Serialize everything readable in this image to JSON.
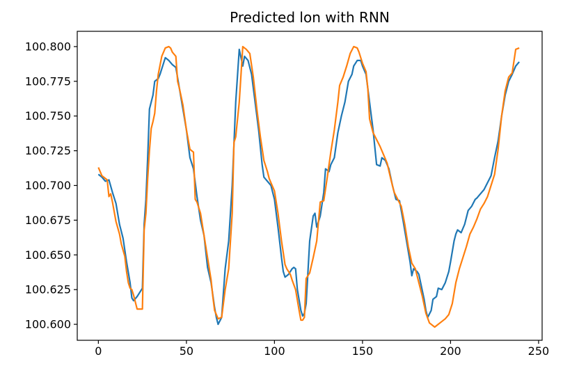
{
  "chart_data": {
    "type": "line",
    "title": "Predicted lon with RNN",
    "xlabel": "",
    "ylabel": "",
    "xlim": [
      -12,
      252
    ],
    "ylim": [
      100.5885,
      100.811
    ],
    "xticks": [
      0,
      50,
      100,
      150,
      200,
      250
    ],
    "yticks": [
      100.6,
      100.625,
      100.65,
      100.675,
      100.7,
      100.725,
      100.75,
      100.775,
      100.8
    ],
    "ytick_labels": [
      "100.600",
      "100.625",
      "100.650",
      "100.675",
      "100.700",
      "100.725",
      "100.750",
      "100.775",
      "100.800"
    ],
    "grid": false,
    "legend": null,
    "series": [
      {
        "color": "#1f77b4",
        "points": [
          [
            0,
            100.708
          ],
          [
            2,
            100.706
          ],
          [
            4,
            100.703
          ],
          [
            6,
            100.704
          ],
          [
            8,
            100.695
          ],
          [
            10,
            100.687
          ],
          [
            12,
            100.672
          ],
          [
            14,
            100.662
          ],
          [
            16,
            100.645
          ],
          [
            18,
            100.63
          ],
          [
            19,
            100.619
          ],
          [
            20,
            100.617
          ],
          [
            22,
            100.62
          ],
          [
            24,
            100.624
          ],
          [
            25,
            100.626
          ],
          [
            26,
            100.672
          ],
          [
            27,
            100.69
          ],
          [
            28,
            100.72
          ],
          [
            29,
            100.755
          ],
          [
            30,
            100.76
          ],
          [
            31,
            100.765
          ],
          [
            32,
            100.775
          ],
          [
            34,
            100.777
          ],
          [
            35,
            100.78
          ],
          [
            37,
            100.788
          ],
          [
            38,
            100.792
          ],
          [
            40,
            100.79
          ],
          [
            42,
            100.787
          ],
          [
            44,
            100.785
          ],
          [
            46,
            100.77
          ],
          [
            48,
            100.755
          ],
          [
            50,
            100.74
          ],
          [
            52,
            100.72
          ],
          [
            54,
            100.712
          ],
          [
            56,
            100.692
          ],
          [
            58,
            100.675
          ],
          [
            60,
            100.664
          ],
          [
            62,
            100.641
          ],
          [
            64,
            100.63
          ],
          [
            66,
            100.612
          ],
          [
            67,
            100.605
          ],
          [
            68,
            100.6
          ],
          [
            70,
            100.605
          ],
          [
            72,
            100.64
          ],
          [
            74,
            100.66
          ],
          [
            76,
            100.7
          ],
          [
            78,
            100.76
          ],
          [
            80,
            100.798
          ],
          [
            81,
            100.792
          ],
          [
            82,
            100.786
          ],
          [
            83,
            100.793
          ],
          [
            85,
            100.79
          ],
          [
            87,
            100.78
          ],
          [
            89,
            100.76
          ],
          [
            91,
            100.74
          ],
          [
            93,
            100.715
          ],
          [
            94,
            100.706
          ],
          [
            96,
            100.703
          ],
          [
            98,
            100.7
          ],
          [
            100,
            100.69
          ],
          [
            102,
            100.67
          ],
          [
            104,
            100.648
          ],
          [
            105,
            100.638
          ],
          [
            106,
            100.634
          ],
          [
            108,
            100.636
          ],
          [
            110,
            100.64
          ],
          [
            111,
            100.641
          ],
          [
            112,
            100.64
          ],
          [
            113,
            100.625
          ],
          [
            115,
            100.61
          ],
          [
            116,
            100.606
          ],
          [
            117,
            100.608
          ],
          [
            118,
            100.615
          ],
          [
            120,
            100.66
          ],
          [
            122,
            100.678
          ],
          [
            123,
            100.68
          ],
          [
            124,
            100.67
          ],
          [
            126,
            100.678
          ],
          [
            128,
            100.695
          ],
          [
            129,
            100.712
          ],
          [
            131,
            100.71
          ],
          [
            132,
            100.715
          ],
          [
            134,
            100.72
          ],
          [
            136,
            100.738
          ],
          [
            138,
            100.75
          ],
          [
            140,
            100.76
          ],
          [
            142,
            100.775
          ],
          [
            144,
            100.78
          ],
          [
            145,
            100.786
          ],
          [
            147,
            100.79
          ],
          [
            149,
            100.79
          ],
          [
            150,
            100.786
          ],
          [
            152,
            100.78
          ],
          [
            154,
            100.76
          ],
          [
            156,
            100.74
          ],
          [
            158,
            100.715
          ],
          [
            160,
            100.714
          ],
          [
            161,
            100.72
          ],
          [
            163,
            100.718
          ],
          [
            165,
            100.712
          ],
          [
            167,
            100.7
          ],
          [
            169,
            100.69
          ],
          [
            171,
            100.689
          ],
          [
            173,
            100.675
          ],
          [
            175,
            100.66
          ],
          [
            177,
            100.645
          ],
          [
            178,
            100.635
          ],
          [
            179,
            100.64
          ],
          [
            181,
            100.638
          ],
          [
            182,
            100.636
          ],
          [
            183,
            100.63
          ],
          [
            185,
            100.618
          ],
          [
            186,
            100.61
          ],
          [
            187,
            100.605
          ],
          [
            189,
            100.61
          ],
          [
            190,
            100.618
          ],
          [
            192,
            100.62
          ],
          [
            193,
            100.626
          ],
          [
            195,
            100.625
          ],
          [
            197,
            100.63
          ],
          [
            199,
            100.638
          ],
          [
            200,
            100.645
          ],
          [
            202,
            100.66
          ],
          [
            203,
            100.665
          ],
          [
            204,
            100.668
          ],
          [
            206,
            100.666
          ],
          [
            208,
            100.672
          ],
          [
            210,
            100.682
          ],
          [
            212,
            100.685
          ],
          [
            214,
            100.69
          ],
          [
            215,
            100.691
          ],
          [
            217,
            100.694
          ],
          [
            219,
            100.697
          ],
          [
            221,
            100.702
          ],
          [
            223,
            100.707
          ],
          [
            225,
            100.72
          ],
          [
            227,
            100.732
          ],
          [
            229,
            100.75
          ],
          [
            231,
            100.765
          ],
          [
            233,
            100.775
          ],
          [
            235,
            100.78
          ],
          [
            237,
            100.786
          ],
          [
            239,
            100.789
          ]
        ]
      },
      {
        "color": "#ff7f0e",
        "points": [
          [
            0,
            100.713
          ],
          [
            1,
            100.71
          ],
          [
            2,
            100.707
          ],
          [
            4,
            100.705
          ],
          [
            5,
            100.704
          ],
          [
            6,
            100.692
          ],
          [
            7,
            100.694
          ],
          [
            8,
            100.688
          ],
          [
            10,
            100.674
          ],
          [
            12,
            100.665
          ],
          [
            13,
            100.658
          ],
          [
            15,
            100.649
          ],
          [
            16,
            100.638
          ],
          [
            17,
            100.63
          ],
          [
            18,
            100.626
          ],
          [
            19,
            100.625
          ],
          [
            20,
            100.621
          ],
          [
            21,
            100.616
          ],
          [
            22,
            100.611
          ],
          [
            24,
            100.611
          ],
          [
            25,
            100.611
          ],
          [
            26,
            100.668
          ],
          [
            27,
            100.68
          ],
          [
            28,
            100.705
          ],
          [
            29,
            100.725
          ],
          [
            30,
            100.741
          ],
          [
            31,
            100.746
          ],
          [
            32,
            100.752
          ],
          [
            33,
            100.768
          ],
          [
            34,
            100.78
          ],
          [
            36,
            100.793
          ],
          [
            38,
            100.799
          ],
          [
            40,
            100.8
          ],
          [
            41,
            100.799
          ],
          [
            42,
            100.796
          ],
          [
            44,
            100.793
          ],
          [
            45,
            100.775
          ],
          [
            46,
            100.77
          ],
          [
            48,
            100.758
          ],
          [
            50,
            100.74
          ],
          [
            52,
            100.726
          ],
          [
            54,
            100.724
          ],
          [
            55,
            100.69
          ],
          [
            56,
            100.688
          ],
          [
            58,
            100.68
          ],
          [
            60,
            100.664
          ],
          [
            62,
            100.648
          ],
          [
            64,
            100.632
          ],
          [
            65,
            100.62
          ],
          [
            66,
            100.61
          ],
          [
            68,
            100.604
          ],
          [
            70,
            100.605
          ],
          [
            72,
            100.625
          ],
          [
            74,
            100.64
          ],
          [
            75,
            100.66
          ],
          [
            76,
            100.68
          ],
          [
            77,
            100.731
          ],
          [
            78,
            100.735
          ],
          [
            80,
            100.76
          ],
          [
            82,
            100.8
          ],
          [
            84,
            100.798
          ],
          [
            86,
            100.795
          ],
          [
            88,
            100.778
          ],
          [
            90,
            100.755
          ],
          [
            92,
            100.735
          ],
          [
            94,
            100.718
          ],
          [
            96,
            100.71
          ],
          [
            97,
            100.705
          ],
          [
            98,
            100.702
          ],
          [
            100,
            100.696
          ],
          [
            102,
            100.68
          ],
          [
            104,
            100.66
          ],
          [
            106,
            100.643
          ],
          [
            107,
            100.64
          ],
          [
            108,
            100.638
          ],
          [
            109,
            100.636
          ],
          [
            110,
            100.632
          ],
          [
            112,
            100.625
          ],
          [
            114,
            100.61
          ],
          [
            115,
            100.603
          ],
          [
            116,
            100.603
          ],
          [
            117,
            100.605
          ],
          [
            118,
            100.633
          ],
          [
            120,
            100.637
          ],
          [
            122,
            100.648
          ],
          [
            124,
            100.66
          ],
          [
            126,
            100.688
          ],
          [
            128,
            100.689
          ],
          [
            130,
            100.706
          ],
          [
            132,
            100.724
          ],
          [
            134,
            100.74
          ],
          [
            136,
            100.76
          ],
          [
            137,
            100.772
          ],
          [
            139,
            100.778
          ],
          [
            141,
            100.786
          ],
          [
            143,
            100.795
          ],
          [
            145,
            100.8
          ],
          [
            147,
            100.799
          ],
          [
            148,
            100.796
          ],
          [
            150,
            100.788
          ],
          [
            152,
            100.782
          ],
          [
            153,
            100.77
          ],
          [
            154,
            100.748
          ],
          [
            156,
            100.738
          ],
          [
            158,
            100.733
          ],
          [
            160,
            100.728
          ],
          [
            162,
            100.722
          ],
          [
            164,
            100.716
          ],
          [
            166,
            100.705
          ],
          [
            168,
            100.695
          ],
          [
            170,
            100.69
          ],
          [
            172,
            100.685
          ],
          [
            174,
            100.672
          ],
          [
            176,
            100.656
          ],
          [
            178,
            100.644
          ],
          [
            180,
            100.64
          ],
          [
            182,
            100.63
          ],
          [
            184,
            100.62
          ],
          [
            186,
            100.608
          ],
          [
            188,
            100.601
          ],
          [
            190,
            100.599
          ],
          [
            191,
            100.598
          ],
          [
            193,
            100.6
          ],
          [
            195,
            100.602
          ],
          [
            197,
            100.604
          ],
          [
            199,
            100.607
          ],
          [
            201,
            100.615
          ],
          [
            203,
            100.63
          ],
          [
            205,
            100.64
          ],
          [
            207,
            100.648
          ],
          [
            209,
            100.656
          ],
          [
            211,
            100.665
          ],
          [
            213,
            100.67
          ],
          [
            215,
            100.676
          ],
          [
            217,
            100.683
          ],
          [
            219,
            100.687
          ],
          [
            221,
            100.692
          ],
          [
            223,
            100.7
          ],
          [
            225,
            100.708
          ],
          [
            227,
            100.726
          ],
          [
            229,
            100.75
          ],
          [
            231,
            100.768
          ],
          [
            233,
            100.778
          ],
          [
            235,
            100.781
          ],
          [
            237,
            100.798
          ],
          [
            239,
            100.799
          ]
        ]
      }
    ]
  }
}
